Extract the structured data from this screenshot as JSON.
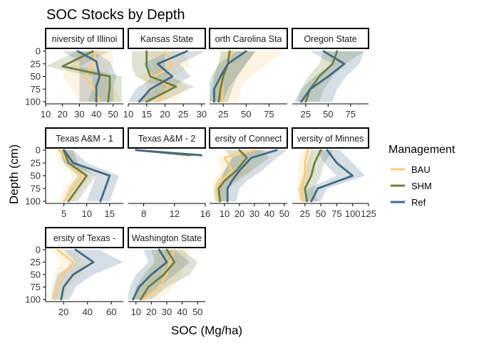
{
  "title": "SOC Stocks by Depth",
  "xlabel": "SOC (Mg/ha)",
  "ylabel": "Depth (cm)",
  "legend": {
    "title": "Management",
    "items": [
      {
        "label": "BAU",
        "color": "#FDCB7A"
      },
      {
        "label": "SHM",
        "color": "#6E803D"
      },
      {
        "label": "Ref",
        "color": "#426A84"
      }
    ]
  },
  "colors": {
    "BAU": "#FDCB7A",
    "SHM": "#6E803D",
    "Ref": "#426A84"
  },
  "chart_data": {
    "type": "line",
    "orientation": "profile (x = SOC, y = depth, y reversed)",
    "y_ticks": [
      0,
      25,
      50,
      75,
      100
    ],
    "ylim": [
      0,
      100
    ],
    "panels": [
      {
        "name": "University of Illinois",
        "strip": "niversity of Illinoi",
        "xlim": [
          10,
          56
        ],
        "xticks": [
          10,
          20,
          30,
          40,
          50
        ],
        "series": [
          {
            "name": "BAU",
            "depth": [
              0,
              30,
              50,
              70,
              100
            ],
            "values": [
              40,
              38,
              33,
              38,
              42
            ],
            "low": [
              30,
              25,
              20,
              25,
              30
            ],
            "high": [
              50,
              50,
              45,
              50,
              55
            ]
          },
          {
            "name": "SHM",
            "depth": [
              0,
              30,
              50,
              70,
              100
            ],
            "values": [
              38,
              20,
              48,
              48,
              47
            ],
            "low": [
              28,
              10,
              38,
              38,
              35
            ],
            "high": [
              48,
              30,
              55,
              55,
              55
            ]
          },
          {
            "name": "Ref",
            "depth": [
              0,
              20,
              50,
              70,
              100
            ],
            "values": [
              29,
              40,
              42,
              40,
              40
            ],
            "low": [
              20,
              30,
              30,
              30,
              30
            ],
            "high": [
              38,
              48,
              52,
              50,
              50
            ]
          }
        ]
      },
      {
        "name": "Kansas State",
        "strip": "Kansas State",
        "xlim": [
          10,
          31
        ],
        "xticks": [
          10,
          15,
          20,
          25,
          30
        ],
        "series": [
          {
            "name": "BAU",
            "depth": [
              0,
              30,
              50,
              70,
              100
            ],
            "values": [
              20,
              22,
              17,
              21,
              18
            ],
            "low": [
              15,
              17,
              13,
              15,
              14
            ],
            "high": [
              25,
              27,
              22,
              26,
              23
            ]
          },
          {
            "name": "SHM",
            "depth": [
              0,
              30,
              50,
              70,
              100
            ],
            "values": [
              15,
              15,
              16,
              23,
              15
            ],
            "low": [
              11,
              11,
              12,
              18,
              12
            ],
            "high": [
              20,
              20,
              21,
              28,
              19
            ]
          },
          {
            "name": "Ref",
            "depth": [
              0,
              25,
              50,
              75,
              100
            ],
            "values": [
              26,
              18,
              22,
              16,
              13
            ],
            "low": [
              21,
              14,
              17,
              12,
              10
            ],
            "high": [
              31,
              24,
              27,
              21,
              16
            ]
          }
        ]
      },
      {
        "name": "North Carolina State",
        "strip": "orth Carolina Sta",
        "xlim": [
          10,
          95
        ],
        "xticks": [
          25,
          50,
          75
        ],
        "series": [
          {
            "name": "BAU",
            "depth": [
              0,
              30,
              50,
              70,
              100
            ],
            "values": [
              35,
              28,
              25,
              24,
              24
            ],
            "low": [
              25,
              18,
              15,
              14,
              14
            ],
            "high": [
              90,
              70,
              55,
              45,
              40
            ]
          },
          {
            "name": "SHM",
            "depth": [
              0,
              25,
              50,
              75,
              100
            ],
            "values": [
              32,
              30,
              25,
              22,
              20
            ],
            "low": [
              22,
              20,
              15,
              12,
              10
            ],
            "high": [
              60,
              50,
              40,
              35,
              30
            ]
          },
          {
            "name": "Ref",
            "depth": [
              0,
              25,
              50,
              75,
              100
            ],
            "values": [
              50,
              30,
              22,
              15,
              15
            ],
            "low": [
              40,
              20,
              12,
              8,
              8
            ],
            "high": [
              60,
              50,
              40,
              30,
              25
            ]
          }
        ]
      },
      {
        "name": "Oregon State",
        "strip": "Oregon State",
        "xlim": [
          10,
          95
        ],
        "xticks": [
          25,
          50,
          75
        ],
        "series": [
          {
            "name": "SHM",
            "depth": [
              0,
              25,
              50,
              75,
              100
            ],
            "values": [
              60,
              55,
              40,
              30,
              25
            ],
            "low": [
              45,
              40,
              28,
              20,
              15
            ],
            "high": [
              90,
              70,
              55,
              45,
              40
            ]
          },
          {
            "name": "Ref",
            "depth": [
              0,
              25,
              50,
              75,
              100
            ],
            "values": [
              45,
              68,
              50,
              30,
              20
            ],
            "low": [
              30,
              55,
              35,
              20,
              12
            ],
            "high": [
              90,
              85,
              70,
              60,
              55
            ]
          }
        ]
      },
      {
        "name": "Texas A&M - 1",
        "strip": "Texas A&M - 1",
        "xlim": [
          1,
          18
        ],
        "xticks": [
          5,
          10,
          15
        ],
        "series": [
          {
            "name": "BAU",
            "depth": [
              0,
              25,
              50,
              75,
              100
            ],
            "values": [
              4,
              6,
              9,
              7,
              5
            ],
            "low": [
              3,
              4,
              7,
              5,
              4
            ],
            "high": [
              6,
              8,
              11,
              9,
              7
            ]
          },
          {
            "name": "SHM",
            "depth": [
              0,
              25,
              50,
              75,
              100
            ],
            "values": [
              5,
              6,
              10,
              8,
              6
            ],
            "low": [
              4,
              5,
              8,
              6,
              5
            ],
            "high": [
              7,
              8,
              12,
              10,
              8
            ]
          },
          {
            "name": "Ref",
            "depth": [
              0,
              25,
              50,
              75,
              100
            ],
            "values": [
              5,
              7,
              15,
              14,
              13
            ],
            "low": [
              4,
              5,
              12,
              11,
              10
            ],
            "high": [
              7,
              10,
              17,
              16,
              15
            ]
          }
        ]
      },
      {
        "name": "Texas A&M - 2",
        "strip": "Texas A&M - 2",
        "xlim": [
          6,
          16
        ],
        "xticks": [
          8,
          12,
          16
        ],
        "series": [
          {
            "name": "BAU",
            "depth": [
              0,
              10
            ],
            "values": [
              7,
              14.5
            ]
          },
          {
            "name": "SHM",
            "depth": [
              0,
              10
            ],
            "values": [
              7,
              14
            ]
          },
          {
            "name": "Ref",
            "depth": [
              0,
              10
            ],
            "values": [
              7,
              15.5
            ]
          }
        ]
      },
      {
        "name": "University of Connecticut",
        "strip": "ersity of Connect",
        "xlim": [
          0,
          52
        ],
        "xticks": [
          10,
          20,
          30,
          40,
          50
        ],
        "series": [
          {
            "name": "BAU",
            "depth": [
              0,
              15,
              40,
              60,
              75,
              100
            ],
            "values": [
              30,
              10,
              15,
              8,
              5,
              6
            ],
            "low": [
              20,
              5,
              8,
              3,
              2,
              3
            ],
            "high": [
              40,
              25,
              30,
              20,
              12,
              10
            ]
          },
          {
            "name": "SHM",
            "depth": [
              0,
              15,
              40,
              60,
              75,
              100
            ],
            "values": [
              20,
              25,
              18,
              10,
              6,
              7
            ],
            "low": [
              10,
              15,
              10,
              5,
              3,
              4
            ],
            "high": [
              35,
              40,
              28,
              18,
              12,
              12
            ]
          },
          {
            "name": "Ref",
            "depth": [
              0,
              15,
              40,
              60,
              75,
              100
            ],
            "values": [
              45,
              28,
              20,
              15,
              12,
              12
            ],
            "low": [
              30,
              15,
              10,
              8,
              6,
              6
            ],
            "high": [
              52,
              45,
              35,
              25,
              20,
              18
            ]
          }
        ]
      },
      {
        "name": "University of Minnesota",
        "strip": "versity of Minnes",
        "xlim": [
          5,
          125
        ],
        "xticks": [
          25,
          50,
          75,
          100,
          125
        ],
        "series": [
          {
            "name": "BAU",
            "depth": [
              0,
              25,
              50,
              75,
              100
            ],
            "values": [
              30,
              25,
              25,
              20,
              22
            ],
            "low": [
              20,
              15,
              15,
              12,
              14
            ],
            "high": [
              40,
              35,
              35,
              30,
              32
            ]
          },
          {
            "name": "SHM",
            "depth": [
              0,
              25,
              50,
              75,
              100
            ],
            "values": [
              50,
              40,
              35,
              25,
              28
            ],
            "low": [
              35,
              28,
              22,
              15,
              18
            ],
            "high": [
              70,
              55,
              50,
              40,
              45
            ]
          },
          {
            "name": "Ref",
            "depth": [
              0,
              25,
              50,
              75,
              100
            ],
            "values": [
              60,
              75,
              100,
              45,
              35
            ],
            "low": [
              45,
              55,
              75,
              30,
              25
            ],
            "high": [
              80,
              100,
              120,
              60,
              50
            ]
          }
        ]
      },
      {
        "name": "University of Texas",
        "strip": "ersity of Texas -",
        "xlim": [
          5,
          70
        ],
        "xticks": [
          20,
          40,
          60
        ],
        "series": [
          {
            "name": "BAU",
            "depth": [
              0,
              25,
              50,
              75,
              100
            ],
            "values": [
              15,
              28,
              20,
              15,
              13
            ],
            "low": [
              10,
              18,
              12,
              10,
              8
            ],
            "high": [
              25,
              40,
              35,
              25,
              20
            ]
          },
          {
            "name": "Ref",
            "depth": [
              0,
              25,
              50,
              75,
              100
            ],
            "values": [
              30,
              45,
              28,
              20,
              18
            ],
            "low": [
              20,
              30,
              15,
              12,
              10
            ],
            "high": [
              50,
              70,
              45,
              30,
              25
            ]
          }
        ]
      },
      {
        "name": "Washington State",
        "strip": "Washington State",
        "xlim": [
          5,
          55
        ],
        "xticks": [
          10,
          20,
          30,
          40,
          50
        ],
        "series": [
          {
            "name": "BAU",
            "depth": [
              0,
              25,
              50,
              75,
              100
            ],
            "values": [
              35,
              32,
              30,
              25,
              15
            ],
            "low": [
              25,
              22,
              18,
              12,
              8
            ],
            "high": [
              45,
              42,
              40,
              35,
              25
            ]
          },
          {
            "name": "SHM",
            "depth": [
              0,
              25,
              50,
              75,
              100
            ],
            "values": [
              30,
              35,
              28,
              18,
              13
            ],
            "low": [
              20,
              22,
              15,
              10,
              8
            ],
            "high": [
              40,
              50,
              45,
              30,
              20
            ]
          },
          {
            "name": "Ref",
            "depth": [
              0,
              25,
              50,
              75,
              100
            ],
            "values": [
              25,
              30,
              20,
              12,
              8
            ],
            "low": [
              15,
              18,
              10,
              6,
              4
            ],
            "high": [
              35,
              45,
              35,
              25,
              15
            ]
          }
        ]
      }
    ]
  }
}
